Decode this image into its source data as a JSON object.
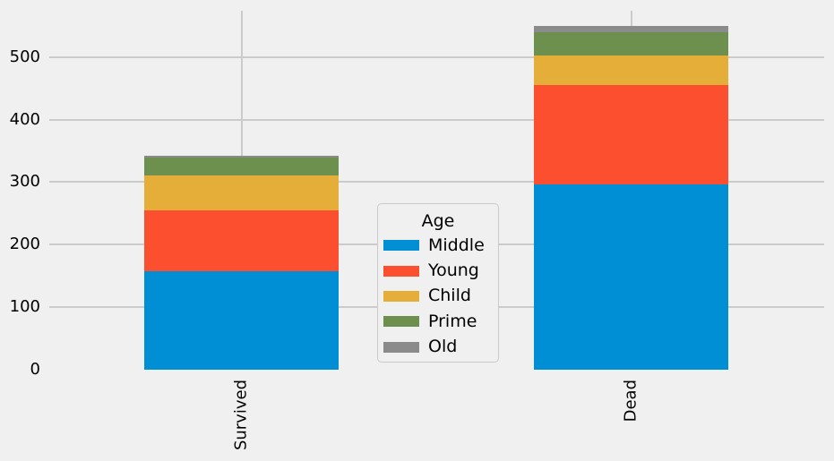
{
  "figure": {
    "background": "#f0f0f0",
    "grid_color": "#cbcbcb",
    "text_color": "#000000",
    "legend_border_color": "#cbcbcb"
  },
  "chart_data": {
    "type": "bar",
    "stacked": true,
    "title": "",
    "xlabel": "",
    "ylabel": "",
    "categories": [
      "Survived",
      "Dead"
    ],
    "series": [
      {
        "name": "Middle",
        "color": "#008fd5",
        "values": [
          158,
          297
        ]
      },
      {
        "name": "Young",
        "color": "#fc4f30",
        "values": [
          97,
          158
        ]
      },
      {
        "name": "Child",
        "color": "#e5ae38",
        "values": [
          56,
          47
        ]
      },
      {
        "name": "Prime",
        "color": "#6d904f",
        "values": [
          28,
          38
        ]
      },
      {
        "name": "Old",
        "color": "#8b8b8b",
        "values": [
          3,
          9
        ]
      }
    ],
    "totals": {
      "Survived": 342,
      "Dead": 549
    },
    "yticks": [
      0,
      100,
      200,
      300,
      400,
      500
    ],
    "ylim": [
      0,
      574
    ],
    "xtick_rotation": 90,
    "grid": true,
    "legend": {
      "title": "Age",
      "position": "center"
    }
  }
}
